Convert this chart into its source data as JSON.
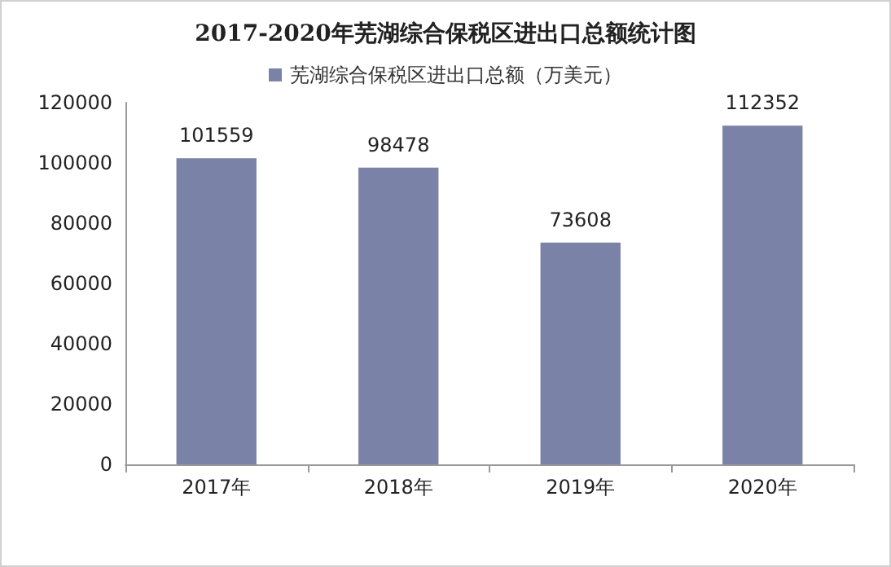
{
  "chart_data": {
    "type": "bar",
    "title": "2017-2020年芜湖综合保税区进出口总额统计图",
    "categories": [
      "2017年",
      "2018年",
      "2019年",
      "2020年"
    ],
    "series": [
      {
        "name": "芜湖综合保税区进出口总额（万美元）",
        "color": "#7a82a8",
        "values": [
          101559,
          98478,
          73608,
          112352
        ]
      }
    ],
    "ylim": [
      0,
      120000
    ],
    "yticks": [
      0,
      20000,
      40000,
      60000,
      80000,
      100000,
      120000
    ],
    "grid": false,
    "legend": "top",
    "data_labels": true
  }
}
